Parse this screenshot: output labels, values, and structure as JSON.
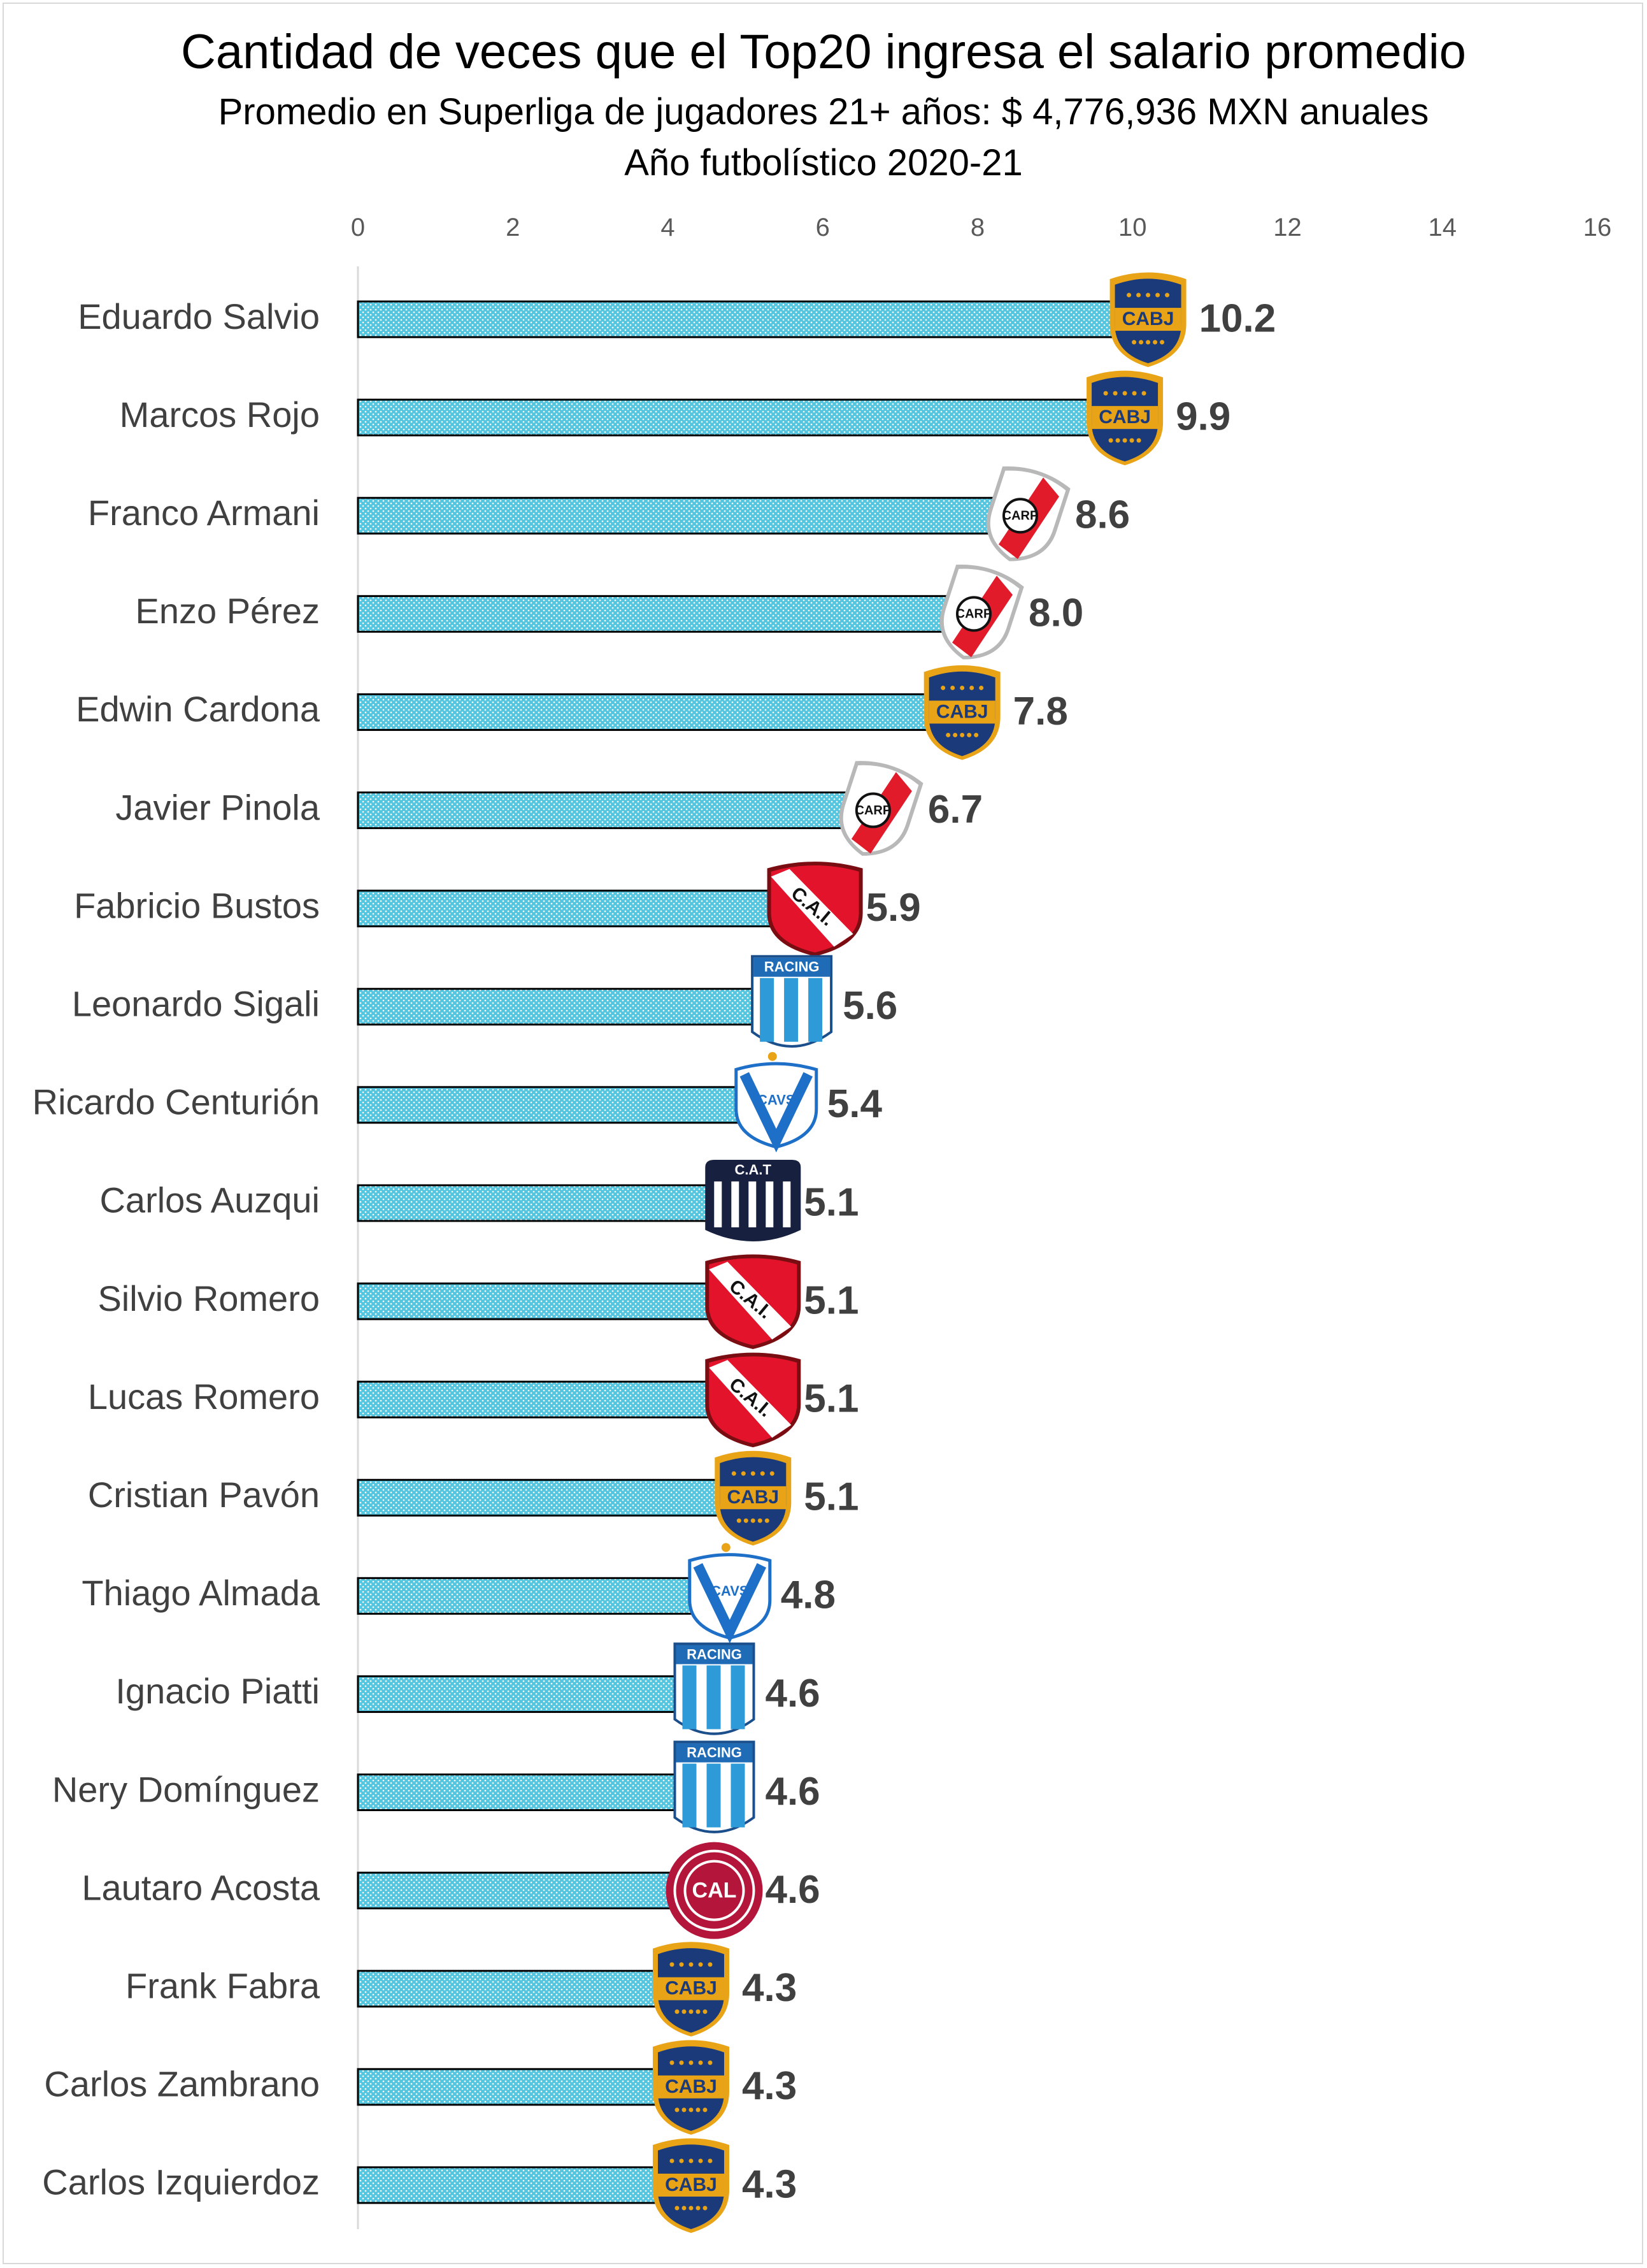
{
  "title": "Cantidad de veces que el Top20 ingresa el salario promedio",
  "subtitle_1": "Promedio en Superliga de jugadores 21+ años: $ 4,776,936 MXN anuales",
  "subtitle_2": "Año futbolístico 2020-21",
  "colors": {
    "bar_fill": "#55c6e0",
    "bar_border": "#000000",
    "boca_blue": "#1b3a7a",
    "boca_gold": "#e8a317",
    "river_red": "#e21b2b",
    "independiente_red": "#e3132c",
    "racing_blue": "#2e9ad8",
    "velez_blue": "#1e6fc7",
    "talleres_navy": "#17213f",
    "lanus_maroon": "#b3163a"
  },
  "chart_data": {
    "type": "bar",
    "orientation": "horizontal",
    "categories": [
      "Eduardo Salvio",
      "Marcos Rojo",
      "Franco Armani",
      "Enzo Pérez",
      "Edwin Cardona",
      "Javier Pinola",
      "Fabricio Bustos",
      "Leonardo Sigali",
      "Ricardo Centurión",
      "Carlos Auzqui",
      "Silvio Romero",
      "Lucas Romero",
      "Cristian Pavón",
      "Thiago Almada",
      "Ignacio Piatti",
      "Nery Domínguez",
      "Lautaro Acosta",
      "Frank Fabra",
      "Carlos Zambrano",
      "Carlos Izquierdoz"
    ],
    "values": [
      10.2,
      9.9,
      8.6,
      8.0,
      7.8,
      6.7,
      5.9,
      5.6,
      5.4,
      5.1,
      5.1,
      5.1,
      5.1,
      4.8,
      4.6,
      4.6,
      4.6,
      4.3,
      4.3,
      4.3
    ],
    "value_labels": [
      "10.2",
      "9.9",
      "8.6",
      "8.0",
      "7.8",
      "6.7",
      "5.9",
      "5.6",
      "5.4",
      "5.1",
      "5.1",
      "5.1",
      "5.1",
      "4.8",
      "4.6",
      "4.6",
      "4.6",
      "4.3",
      "4.3",
      "4.3"
    ],
    "club_badges": [
      "boca",
      "boca",
      "river",
      "river",
      "boca",
      "river",
      "independiente",
      "racing",
      "velez",
      "talleres",
      "independiente",
      "independiente",
      "boca",
      "velez",
      "racing",
      "racing",
      "lanus",
      "boca",
      "boca",
      "boca"
    ],
    "badge_text": {
      "boca": "CABJ",
      "river": "CARP",
      "independiente": "C.A.I.",
      "racing": "RACING",
      "velez": "CAVS",
      "talleres": "C.A.T",
      "lanus": "CAL"
    },
    "x_ticks": [
      "0",
      "2",
      "4",
      "6",
      "8",
      "10",
      "12",
      "14",
      "16"
    ],
    "xlim": [
      0,
      16
    ],
    "x_axis_position": "top",
    "grid": false,
    "legend": "none"
  }
}
